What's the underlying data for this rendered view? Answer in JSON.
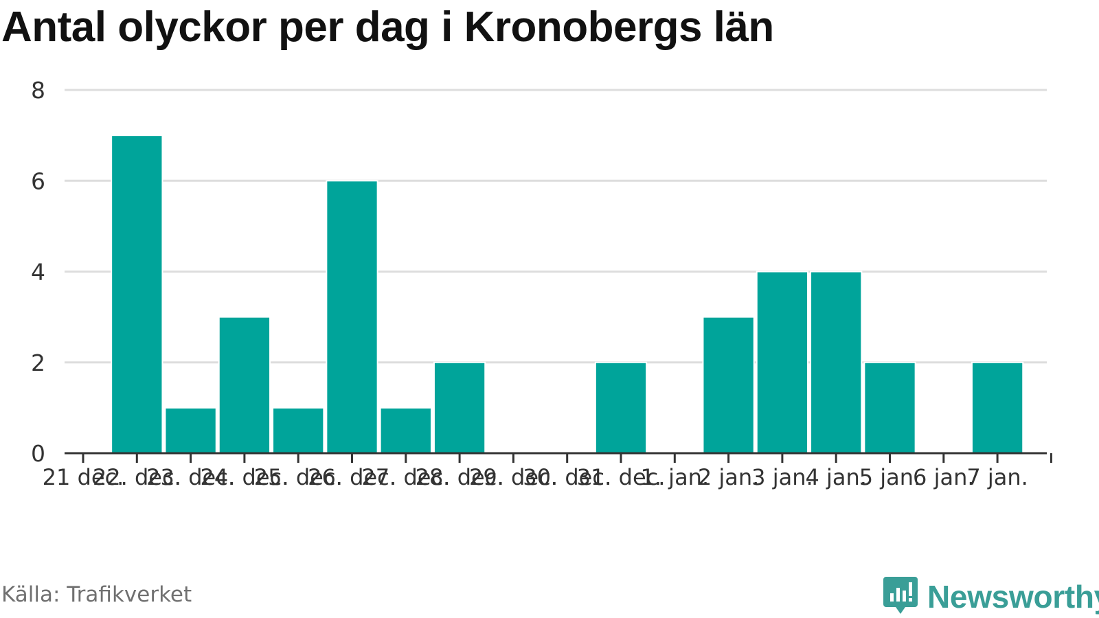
{
  "title": "Antal olyckor per dag i Kronobergs län",
  "source": "Källa: Trafikverket",
  "brand": {
    "name": "Newsworthy",
    "icon": "newsworthy-logo-icon",
    "color": "#3a9e97"
  },
  "colors": {
    "bar": "#00a49a",
    "grid": "#dddddd",
    "axis": "#333333"
  },
  "chart_data": {
    "type": "bar",
    "title": "Antal olyckor per dag i Kronobergs län",
    "xlabel": "",
    "ylabel": "",
    "ylim": [
      0,
      8
    ],
    "yticks": [
      0,
      2,
      4,
      6,
      8
    ],
    "grid": true,
    "categories": [
      "21 dec.",
      "22. dec.",
      "23. dec.",
      "24. dec.",
      "25. dec.",
      "26. dec.",
      "27. dec.",
      "28. dec.",
      "29. dec.",
      "30. dec.",
      "31. dec.",
      "1. jan.",
      "2 jan.",
      "3 jan.",
      "4 jan.",
      "5 jan.",
      "6 jan.",
      "7 jan."
    ],
    "x": [
      "2021-12-22",
      "2021-12-23",
      "2021-12-24",
      "2021-12-25",
      "2021-12-26",
      "2021-12-27",
      "2021-12-28",
      "2021-12-31",
      "2022-01-02",
      "2022-01-03",
      "2022-01-04",
      "2022-01-05",
      "2022-01-07"
    ],
    "values": [
      7,
      1,
      3,
      1,
      6,
      1,
      2,
      2,
      3,
      4,
      4,
      2,
      2
    ]
  }
}
